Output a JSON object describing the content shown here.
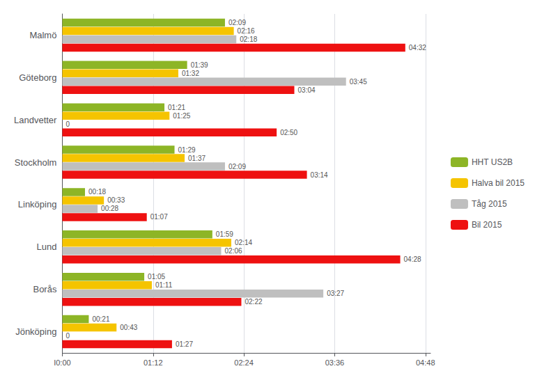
{
  "chart_data": {
    "type": "bar",
    "orientation": "horizontal",
    "categories": [
      "Malmö",
      "Göteborg",
      "Landvetter",
      "Stockholm",
      "Linköping",
      "Lund",
      "Borås",
      "Jönköping"
    ],
    "series": [
      {
        "name": "HHT US2B",
        "color": "#8DB526",
        "values": [
          129,
          99,
          81,
          89,
          18,
          119,
          65,
          21
        ],
        "value_labels": [
          "02:09",
          "01:39",
          "01:21",
          "01:29",
          "00:18",
          "01:59",
          "01:05",
          "00:21"
        ]
      },
      {
        "name": "Halva bil 2015",
        "color": "#F5C400",
        "values": [
          136,
          92,
          85,
          97,
          33,
          134,
          71,
          43
        ],
        "value_labels": [
          "02:16",
          "01:32",
          "01:25",
          "01:37",
          "00:33",
          "02:14",
          "01:11",
          "00:43"
        ]
      },
      {
        "name": "Tåg 2015",
        "color": "#BFBFBF",
        "values": [
          138,
          225,
          0,
          129,
          28,
          126,
          207,
          0
        ],
        "value_labels": [
          "02:18",
          "03:45",
          "0",
          "02:09",
          "00:28",
          "02:06",
          "03:27",
          "0"
        ]
      },
      {
        "name": "Bil 2015",
        "color": "#EE1111",
        "values": [
          272,
          184,
          170,
          194,
          67,
          268,
          142,
          87
        ],
        "value_labels": [
          "04:32",
          "03:04",
          "02:50",
          "03:14",
          "01:07",
          "04:28",
          "02:22",
          "01:27"
        ]
      }
    ],
    "xlim": [
      0,
      292
    ],
    "xticks": [
      {
        "value": 0,
        "label": "I0:00"
      },
      {
        "value": 72,
        "label": "01:12"
      },
      {
        "value": 144,
        "label": "02:24"
      },
      {
        "value": 216,
        "label": "03:36"
      },
      {
        "value": 288,
        "label": "04:48"
      }
    ],
    "grid": true,
    "legend": "right",
    "data_labels": true
  }
}
